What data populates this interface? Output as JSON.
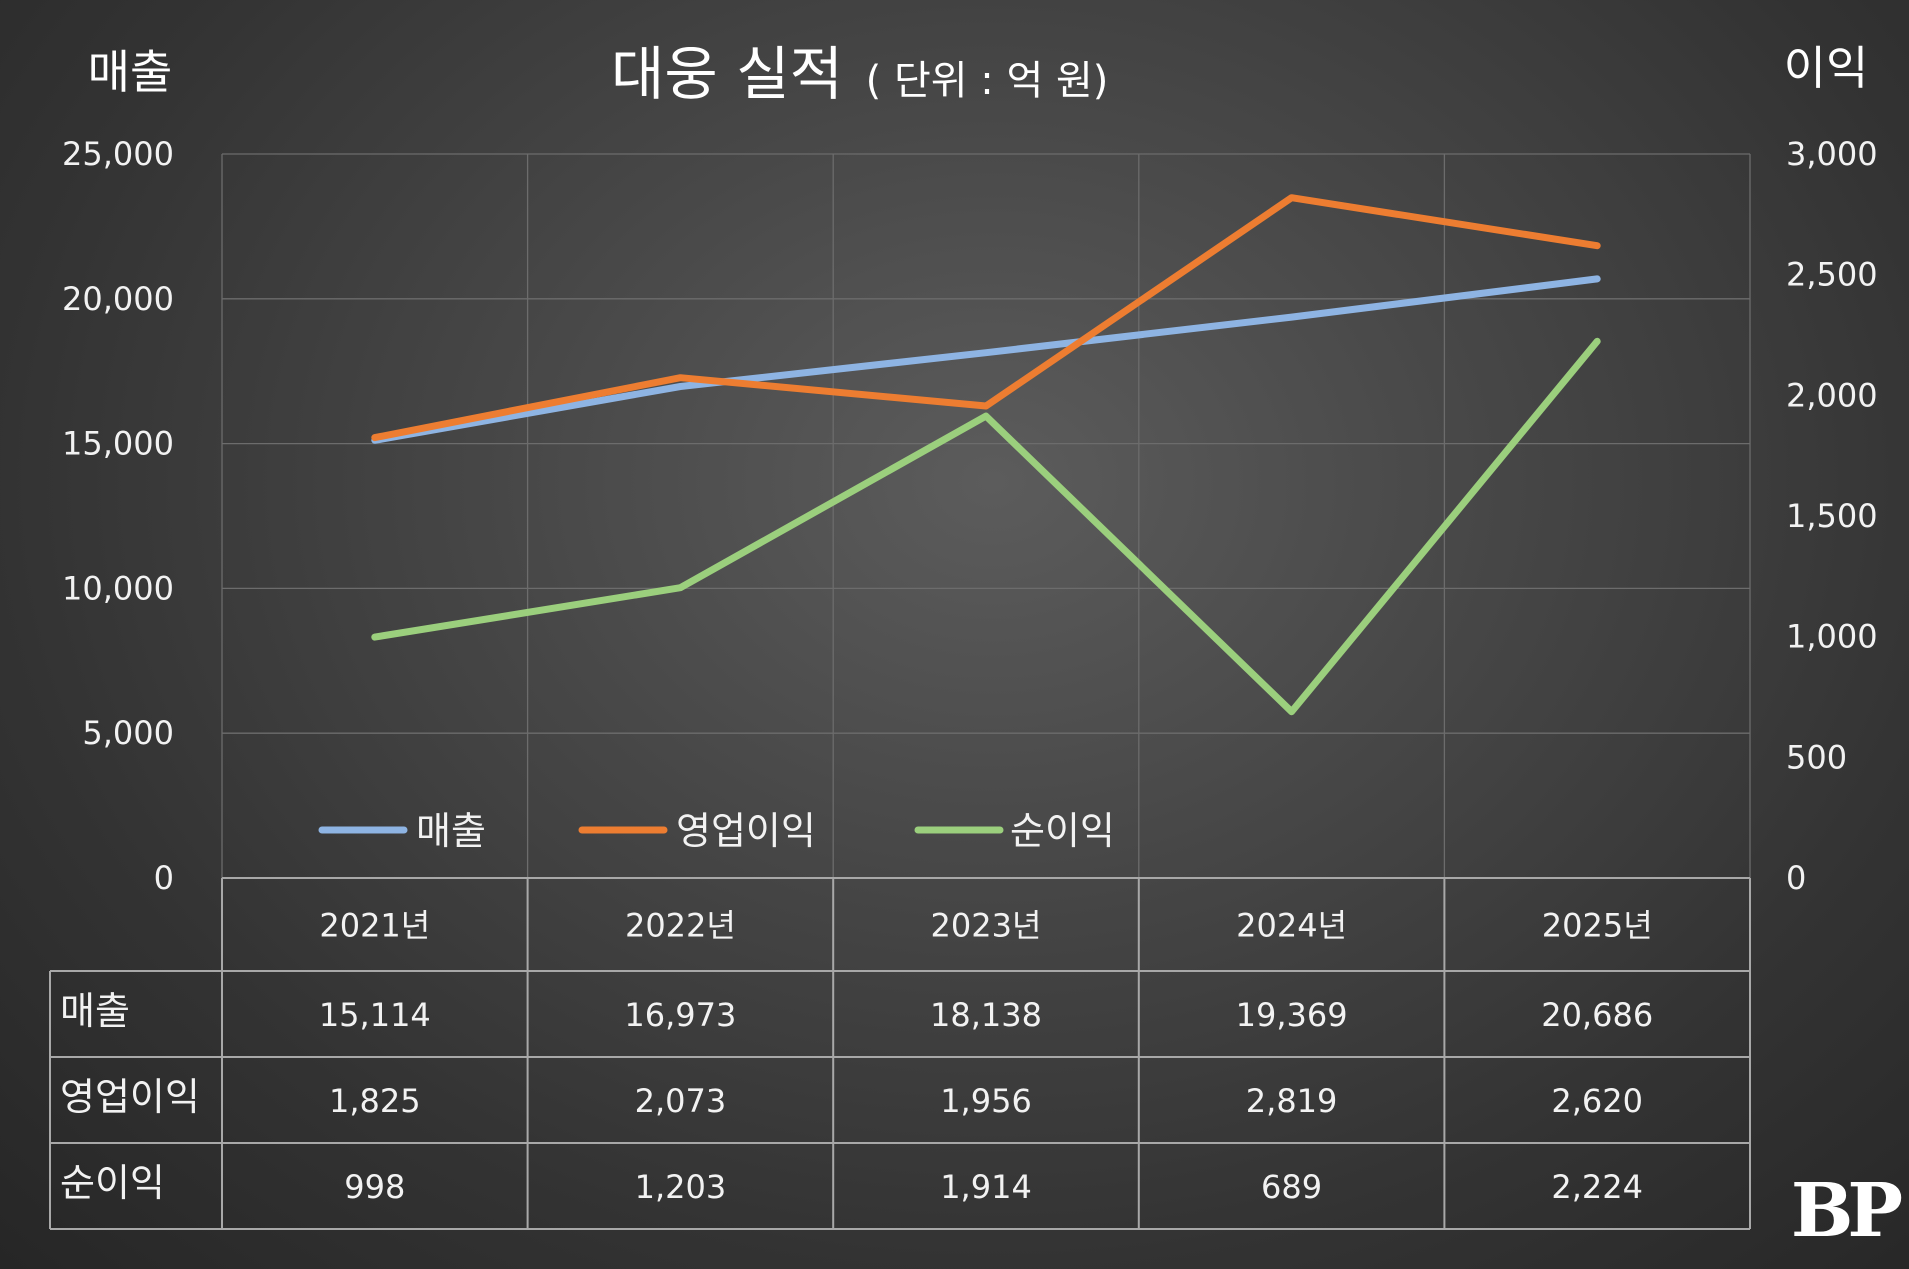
{
  "chart_data": {
    "type": "line",
    "title": "대웅 실적",
    "unit_label": "( 단위 : 억 원)",
    "ylabel_left": "매출",
    "ylabel_right": "이익",
    "categories": [
      "2021년",
      "2022년",
      "2023년",
      "2024년",
      "2025년"
    ],
    "ylim_left": [
      0,
      25000
    ],
    "ylim_right": [
      0,
      3000
    ],
    "left_ticks": [
      "0",
      "5,000",
      "10,000",
      "15,000",
      "20,000",
      "25,000"
    ],
    "right_ticks": [
      "0",
      "500",
      "1,000",
      "1,500",
      "2,000",
      "2,500",
      "3,000"
    ],
    "left_tick_values": [
      0,
      5000,
      10000,
      15000,
      20000,
      25000
    ],
    "right_tick_values": [
      0,
      500,
      1000,
      1500,
      2000,
      2500,
      3000
    ],
    "grid": true,
    "legend_position": "bottom",
    "series": [
      {
        "name": "매출",
        "axis": "left",
        "color": "#8eb4e3",
        "values": [
          15114,
          16973,
          18138,
          19369,
          20686
        ],
        "labels": [
          "15,114",
          "16,973",
          "18,138",
          "19,369",
          "20,686"
        ]
      },
      {
        "name": "영업이익",
        "axis": "right",
        "color": "#ed7d31",
        "values": [
          1825,
          2073,
          1956,
          2819,
          2620
        ],
        "labels": [
          "1,825",
          "2,073",
          "1,956",
          "2,819",
          "2,620"
        ]
      },
      {
        "name": "순이익",
        "axis": "right",
        "color": "#9bcf7d",
        "values": [
          998,
          1203,
          1914,
          689,
          2224
        ],
        "labels": [
          "998",
          "1,203",
          "1,914",
          "689",
          "2,224"
        ]
      }
    ]
  },
  "logo_text": "BP"
}
